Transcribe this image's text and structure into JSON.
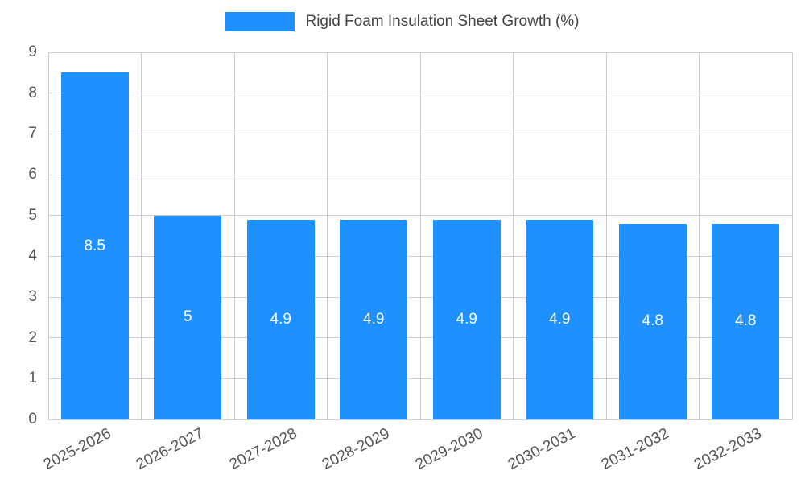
{
  "legend": {
    "label": "Rigid Foam Insulation Sheet Growth (%)"
  },
  "colors": {
    "bar": "#1e90ff",
    "grid": "#cccccc",
    "axis_text": "#555555",
    "title_text": "#444444",
    "bar_label_text": "#ffffff",
    "background": "#ffffff"
  },
  "chart_data": {
    "type": "bar",
    "title": "Rigid Foam Insulation Sheet Growth (%)",
    "categories": [
      "2025-2026",
      "2026-2027",
      "2027-2028",
      "2028-2029",
      "2029-2030",
      "2030-2031",
      "2031-2032",
      "2032-2033"
    ],
    "values": [
      8.5,
      5,
      4.9,
      4.9,
      4.9,
      4.9,
      4.8,
      4.8
    ],
    "value_labels": [
      "8.5",
      "5",
      "4.9",
      "4.9",
      "4.9",
      "4.9",
      "4.8",
      "4.8"
    ],
    "xlabel": "",
    "ylabel": "",
    "ylim": [
      0,
      9
    ],
    "yticks": [
      0,
      1,
      2,
      3,
      4,
      5,
      6,
      7,
      8,
      9
    ],
    "grid": true,
    "legend_position": "top"
  }
}
